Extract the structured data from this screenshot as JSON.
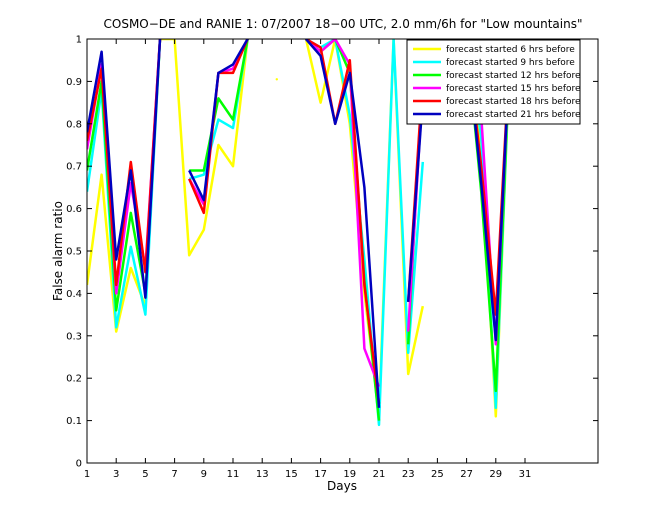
{
  "chart_data": {
    "type": "line",
    "title": "COSMO−DE and RANIE 1: 07/2007 18−00 UTC, 2.0 mm/6h for \"Low mountains\"",
    "xlabel": "Days",
    "ylabel": "False alarm ratio",
    "xlim": [
      1,
      36
    ],
    "ylim": [
      0,
      1
    ],
    "xticks": [
      1,
      3,
      5,
      7,
      9,
      11,
      13,
      15,
      17,
      19,
      21,
      23,
      25,
      27,
      29,
      31
    ],
    "yticks": [
      0,
      0.1,
      0.2,
      0.3,
      0.4,
      0.5,
      0.6,
      0.7,
      0.8,
      0.9,
      1
    ],
    "ytick_labels": [
      "0",
      "0.1",
      "0.2",
      "0.3",
      "0.4",
      "0.5",
      "0.6",
      "0.7",
      "0.8",
      "0.9",
      "1"
    ],
    "grid": false,
    "legend_position": "top-right",
    "x": [
      1,
      2,
      3,
      4,
      5,
      6,
      7,
      8,
      9,
      10,
      11,
      12,
      13,
      14,
      15,
      16,
      17,
      18,
      19,
      20,
      21,
      22,
      23,
      24,
      25,
      26,
      27,
      28,
      29,
      30,
      31
    ],
    "series": [
      {
        "name": "forecast started 6 hrs before",
        "color": "#ffff00",
        "values": [
          0.42,
          0.68,
          0.31,
          0.46,
          0.37,
          1.0,
          1.0,
          0.49,
          0.55,
          0.75,
          0.7,
          1.0,
          null,
          0.905,
          null,
          1.0,
          0.85,
          1.0,
          0.8,
          0.4,
          0.12,
          1.0,
          0.21,
          0.37,
          null,
          null,
          1.0,
          0.75,
          0.11,
          1.0,
          null
        ]
      },
      {
        "name": "forecast started 9 hrs before",
        "color": "#00ffff",
        "values": [
          0.64,
          0.88,
          0.32,
          0.51,
          0.35,
          1.0,
          null,
          0.67,
          0.68,
          0.81,
          0.79,
          1.0,
          null,
          null,
          null,
          1.0,
          0.98,
          1.0,
          0.82,
          0.48,
          0.09,
          1.0,
          0.26,
          0.71,
          null,
          null,
          1.0,
          0.77,
          0.13,
          1.0,
          null
        ]
      },
      {
        "name": "forecast started 12 hrs before",
        "color": "#00ff00",
        "values": [
          0.69,
          0.9,
          0.36,
          0.59,
          0.4,
          1.0,
          null,
          0.69,
          0.69,
          0.86,
          0.81,
          1.0,
          null,
          null,
          null,
          1.0,
          0.97,
          1.0,
          0.92,
          0.43,
          0.1,
          null,
          0.28,
          0.93,
          null,
          null,
          1.0,
          0.64,
          0.17,
          1.0,
          null
        ]
      },
      {
        "name": "forecast started 15 hrs before",
        "color": "#ff00ff",
        "values": [
          0.74,
          0.94,
          0.4,
          0.66,
          0.46,
          1.0,
          null,
          0.67,
          0.61,
          0.92,
          0.93,
          1.0,
          null,
          null,
          null,
          1.0,
          0.97,
          1.0,
          0.94,
          0.27,
          0.18,
          null,
          0.31,
          0.89,
          null,
          null,
          1.0,
          0.82,
          0.28,
          1.0,
          null
        ]
      },
      {
        "name": "forecast started 18 hrs before",
        "color": "#ff0000",
        "values": [
          0.76,
          0.93,
          0.42,
          0.71,
          0.45,
          1.0,
          null,
          0.67,
          0.59,
          0.92,
          0.92,
          1.0,
          null,
          null,
          null,
          1.0,
          0.98,
          0.8,
          0.95,
          0.42,
          0.14,
          null,
          0.38,
          0.91,
          null,
          null,
          1.0,
          0.7,
          0.35,
          1.0,
          null
        ]
      },
      {
        "name": "forecast started 21 hrs before",
        "color": "#0000bf",
        "values": [
          0.78,
          0.97,
          0.48,
          0.69,
          0.39,
          1.0,
          null,
          0.69,
          0.62,
          0.92,
          0.94,
          1.0,
          null,
          null,
          null,
          1.0,
          0.96,
          0.8,
          0.92,
          0.65,
          0.13,
          null,
          0.38,
          0.86,
          null,
          null,
          1.0,
          0.66,
          0.29,
          1.0,
          null
        ]
      }
    ]
  }
}
